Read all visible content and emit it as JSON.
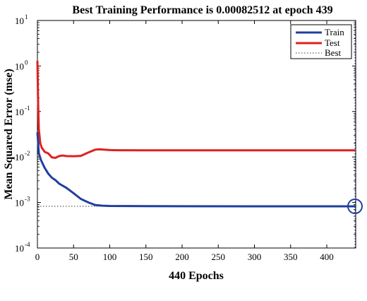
{
  "chart_data": {
    "type": "line",
    "title": "Best Training Performance is 0.00082512 at epoch 439",
    "xlabel": "440 Epochs",
    "ylabel": "Mean Squared Error  (mse)",
    "xlim": [
      0,
      440
    ],
    "ylim": [
      0.0001,
      10
    ],
    "yscale": "log",
    "x_ticks": [
      0,
      50,
      100,
      150,
      200,
      250,
      300,
      350,
      400
    ],
    "y_ticks": [
      {
        "base": "10",
        "exp": "-4",
        "value": 0.0001
      },
      {
        "base": "10",
        "exp": "-3",
        "value": 0.001
      },
      {
        "base": "10",
        "exp": "-2",
        "value": 0.01
      },
      {
        "base": "10",
        "exp": "-1",
        "value": 0.1
      },
      {
        "base": "10",
        "exp": "0",
        "value": 1
      },
      {
        "base": "10",
        "exp": "1",
        "value": 10
      }
    ],
    "grid": false,
    "legend_position": "top-right",
    "series": [
      {
        "name": "Train",
        "color": "#1f3f9f",
        "style": "solid",
        "points": [
          [
            0,
            0.035
          ],
          [
            2,
            0.012
          ],
          [
            5,
            0.0085
          ],
          [
            10,
            0.0058
          ],
          [
            15,
            0.0043
          ],
          [
            20,
            0.0035
          ],
          [
            25,
            0.0031
          ],
          [
            30,
            0.0026
          ],
          [
            40,
            0.0021
          ],
          [
            50,
            0.0016
          ],
          [
            60,
            0.0012
          ],
          [
            70,
            0.00101
          ],
          [
            80,
            0.00088
          ],
          [
            90,
            0.00085
          ],
          [
            100,
            0.00084
          ],
          [
            150,
            0.00083
          ],
          [
            200,
            0.000828
          ],
          [
            300,
            0.000826
          ],
          [
            400,
            0.000825
          ],
          [
            440,
            0.00082512
          ]
        ]
      },
      {
        "name": "Test",
        "color": "#e02020",
        "style": "solid",
        "points": [
          [
            0,
            1.3
          ],
          [
            1,
            0.15
          ],
          [
            2,
            0.04
          ],
          [
            4,
            0.02
          ],
          [
            6,
            0.016
          ],
          [
            10,
            0.013
          ],
          [
            15,
            0.012
          ],
          [
            20,
            0.0098
          ],
          [
            25,
            0.0096
          ],
          [
            30,
            0.0105
          ],
          [
            35,
            0.0108
          ],
          [
            40,
            0.0105
          ],
          [
            50,
            0.0104
          ],
          [
            60,
            0.0106
          ],
          [
            70,
            0.0125
          ],
          [
            80,
            0.0145
          ],
          [
            85,
            0.0148
          ],
          [
            90,
            0.0146
          ],
          [
            100,
            0.0142
          ],
          [
            110,
            0.0141
          ],
          [
            150,
            0.014
          ],
          [
            200,
            0.014
          ],
          [
            300,
            0.014
          ],
          [
            440,
            0.014
          ]
        ]
      },
      {
        "name": "Best",
        "color": "#333333",
        "style": "dotted",
        "points": [
          [
            0,
            0.00082512
          ],
          [
            440,
            0.00082512
          ]
        ]
      }
    ],
    "best_epoch": 439,
    "best_value": 0.00082512,
    "best_marker_color": "#1f3f9f"
  }
}
